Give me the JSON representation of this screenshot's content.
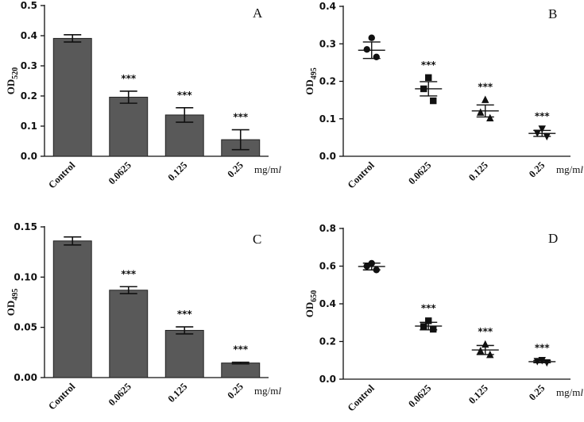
{
  "chart_data": [
    {
      "panel": "A",
      "type": "bar",
      "ylabel": "OD",
      "ylabel_sub": "520",
      "unit": "mg/ml",
      "categories": [
        "Control",
        "0.0625",
        "0.125",
        "0.25"
      ],
      "values": [
        0.391,
        0.196,
        0.137,
        0.055
      ],
      "errors": [
        0.012,
        0.02,
        0.024,
        0.033
      ],
      "significance": [
        "",
        "***",
        "***",
        "***"
      ],
      "ylim": [
        0,
        0.5
      ],
      "yticks": [
        0.0,
        0.1,
        0.2,
        0.3,
        0.4,
        0.5
      ],
      "ytick_labels": [
        "0.0",
        "0.1",
        "0.2",
        "0.3",
        "0.4",
        "0.5"
      ]
    },
    {
      "panel": "B",
      "type": "scatter",
      "ylabel": "OD",
      "ylabel_sub": "495",
      "unit": "mg/ml",
      "categories": [
        "Control",
        "0.0625",
        "0.125",
        "0.25"
      ],
      "markers": [
        "circle",
        "square",
        "triangle",
        "triangle-down"
      ],
      "points": [
        [
          0.316,
          0.285,
          0.265
        ],
        [
          0.21,
          0.18,
          0.148
        ],
        [
          0.151,
          0.117,
          0.102
        ],
        [
          0.073,
          0.062,
          0.053
        ]
      ],
      "means": [
        0.283,
        0.18,
        0.121,
        0.061
      ],
      "errors": [
        0.022,
        0.019,
        0.016,
        0.008
      ],
      "significance": [
        "",
        "***",
        "***",
        "***"
      ],
      "ylim": [
        0,
        0.4
      ],
      "yticks": [
        0.0,
        0.1,
        0.2,
        0.3,
        0.4
      ],
      "ytick_labels": [
        "0.0",
        "0.1",
        "0.2",
        "0.3",
        "0.4"
      ]
    },
    {
      "panel": "C",
      "type": "bar",
      "ylabel": "OD",
      "ylabel_sub": "495",
      "unit": "mg/ml",
      "categories": [
        "Control",
        "0.0625",
        "0.125",
        "0.25"
      ],
      "values": [
        0.136,
        0.087,
        0.047,
        0.0145
      ],
      "errors": [
        0.004,
        0.0035,
        0.0035,
        0.0008
      ],
      "significance": [
        "",
        "***",
        "***",
        "***"
      ],
      "ylim": [
        0,
        0.15
      ],
      "yticks": [
        0.0,
        0.05,
        0.1,
        0.15
      ],
      "ytick_labels": [
        "0.00",
        "0.05",
        "0.10",
        "0.15"
      ]
    },
    {
      "panel": "D",
      "type": "scatter",
      "ylabel": "OD",
      "ylabel_sub": "650",
      "unit": "mg/ml",
      "categories": [
        "Control",
        "0.0625",
        "0.125",
        "0.25"
      ],
      "markers": [
        "circle",
        "square",
        "triangle",
        "triangle-down"
      ],
      "points": [
        [
          0.615,
          0.6,
          0.58
        ],
        [
          0.31,
          0.28,
          0.265
        ],
        [
          0.185,
          0.15,
          0.13
        ],
        [
          0.1,
          0.095,
          0.088
        ]
      ],
      "means": [
        0.598,
        0.282,
        0.155,
        0.093
      ],
      "errors": [
        0.018,
        0.02,
        0.024,
        0.006
      ],
      "significance": [
        "",
        "***",
        "***",
        "***"
      ],
      "ylim": [
        0,
        0.8
      ],
      "yticks": [
        0.0,
        0.2,
        0.4,
        0.6,
        0.8
      ],
      "ytick_labels": [
        "0.0",
        "0.2",
        "0.4",
        "0.6",
        "0.8"
      ]
    }
  ],
  "colors": {
    "bar_fill": "#595959",
    "ink": "#111111"
  }
}
